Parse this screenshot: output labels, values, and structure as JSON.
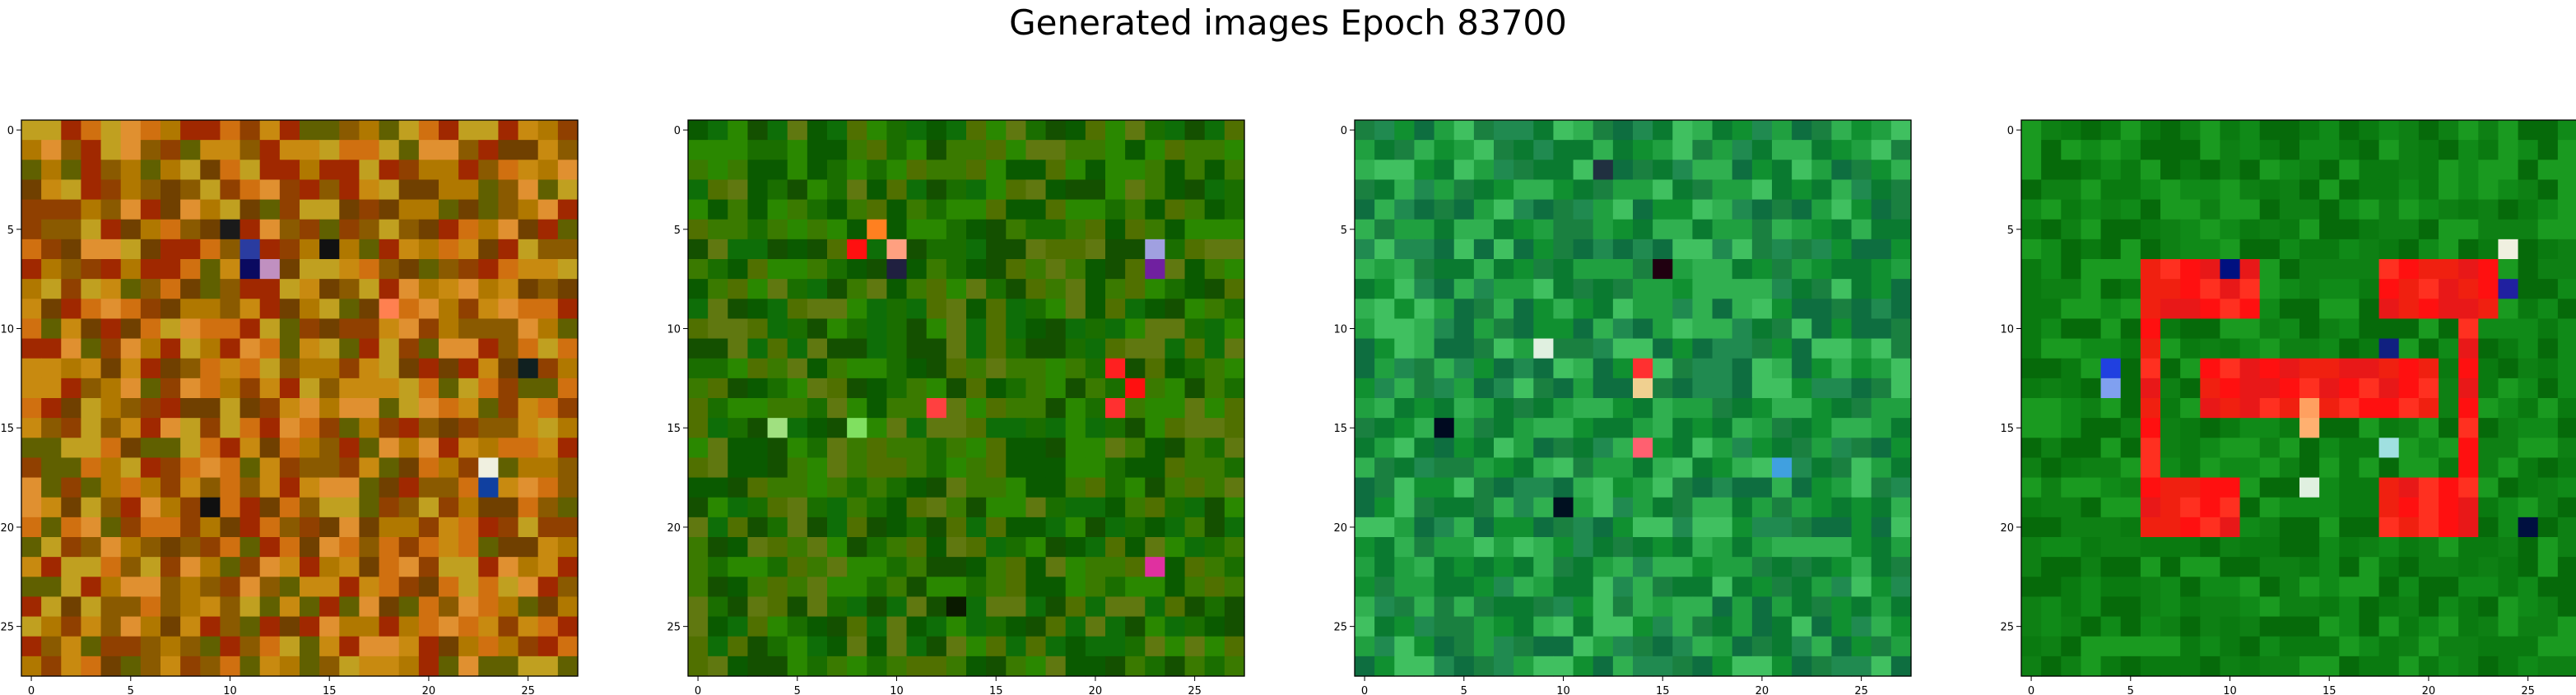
{
  "title": "Generated images Epoch 83700",
  "chart_data": [
    {
      "type": "heatmap",
      "description_source": "image panel 1 (28x28 pixel image)",
      "xticks": [
        0,
        5,
        10,
        15,
        20,
        25
      ],
      "yticks": [
        0,
        5,
        10,
        15,
        20,
        25
      ],
      "xlim": [
        -0.5,
        27.5
      ],
      "ylim": [
        27.5,
        -0.5
      ],
      "palette": [
        "#b07800",
        "#c88a10",
        "#8a5a00",
        "#a02800",
        "#d07010",
        "#606000",
        "#c0a020",
        "#904000",
        "#e09030",
        "#704000"
      ],
      "accents": [
        {
          "row": 5,
          "col": 10,
          "color": "#1a1a1a"
        },
        {
          "row": 6,
          "col": 11,
          "color": "#2a3ca0"
        },
        {
          "row": 7,
          "col": 11,
          "color": "#0a0a60"
        },
        {
          "row": 7,
          "col": 12,
          "color": "#c090c0"
        },
        {
          "row": 6,
          "col": 15,
          "color": "#111111"
        },
        {
          "row": 9,
          "col": 18,
          "color": "#ff8050"
        },
        {
          "row": 12,
          "col": 25,
          "color": "#102020"
        },
        {
          "row": 17,
          "col": 23,
          "color": "#f0f0e0"
        },
        {
          "row": 18,
          "col": 23,
          "color": "#1040a0"
        },
        {
          "row": 19,
          "col": 9,
          "color": "#101010"
        }
      ]
    },
    {
      "type": "heatmap",
      "description_source": "image panel 2 (28x28 pixel image)",
      "xticks": [
        0,
        5,
        10,
        15,
        20,
        25
      ],
      "yticks": [
        0,
        5,
        10,
        15,
        20,
        25
      ],
      "xlim": [
        -0.5,
        27.5
      ],
      "ylim": [
        27.5,
        -0.5
      ],
      "palette": [
        "#1a6e00",
        "#0a5a00",
        "#3a7a00",
        "#2a8800",
        "#507000",
        "#145000",
        "#0e6e08",
        "#607810"
      ],
      "accents": [
        {
          "row": 6,
          "col": 8,
          "color": "#ff1010"
        },
        {
          "row": 5,
          "col": 9,
          "color": "#ff8020"
        },
        {
          "row": 6,
          "col": 10,
          "color": "#ffa080"
        },
        {
          "row": 7,
          "col": 10,
          "color": "#202040"
        },
        {
          "row": 7,
          "col": 23,
          "color": "#7020a0"
        },
        {
          "row": 6,
          "col": 23,
          "color": "#a0a0e0"
        },
        {
          "row": 12,
          "col": 21,
          "color": "#ff2020"
        },
        {
          "row": 13,
          "col": 22,
          "color": "#ff1010"
        },
        {
          "row": 14,
          "col": 21,
          "color": "#ff3030"
        },
        {
          "row": 14,
          "col": 12,
          "color": "#ff4040"
        },
        {
          "row": 15,
          "col": 4,
          "color": "#a0e080"
        },
        {
          "row": 15,
          "col": 8,
          "color": "#80e060"
        },
        {
          "row": 22,
          "col": 23,
          "color": "#e030a0"
        },
        {
          "row": 24,
          "col": 13,
          "color": "#0a1a00"
        }
      ]
    },
    {
      "type": "heatmap",
      "description_source": "image panel 3 (28x28 pixel image)",
      "xticks": [
        0,
        5,
        10,
        15,
        20,
        25
      ],
      "yticks": [
        0,
        5,
        10,
        15,
        20,
        25
      ],
      "xlim": [
        -0.5,
        27.5
      ],
      "ylim": [
        27.5,
        -0.5
      ],
      "palette": [
        "#109030",
        "#20a040",
        "#0a7a30",
        "#30b050",
        "#1a8040",
        "#40c060",
        "#0e6e40",
        "#208a50"
      ],
      "accents": [
        {
          "row": 2,
          "col": 12,
          "color": "#203040"
        },
        {
          "row": 7,
          "col": 15,
          "color": "#200010"
        },
        {
          "row": 11,
          "col": 9,
          "color": "#e0f0e0"
        },
        {
          "row": 12,
          "col": 14,
          "color": "#ff3030"
        },
        {
          "row": 13,
          "col": 14,
          "color": "#f0d090"
        },
        {
          "row": 15,
          "col": 4,
          "color": "#000a20"
        },
        {
          "row": 16,
          "col": 14,
          "color": "#ff6070"
        },
        {
          "row": 17,
          "col": 21,
          "color": "#40a0e0"
        },
        {
          "row": 19,
          "col": 10,
          "color": "#001020"
        }
      ]
    },
    {
      "type": "heatmap",
      "description_source": "image panel 4 (28x28 pixel image)",
      "xticks": [
        0,
        5,
        10,
        15,
        20,
        25
      ],
      "yticks": [
        0,
        5,
        10,
        15,
        20,
        25
      ],
      "xlim": [
        -0.5,
        27.5
      ],
      "ylim": [
        27.5,
        -0.5
      ],
      "palette": [
        "#0a7a10",
        "#108a18",
        "#066a0a",
        "#1a9a20",
        "#0e8014"
      ],
      "accents": [
        {
          "row": 6,
          "col": 24,
          "color": "#f0f0e0"
        },
        {
          "row": 7,
          "col": 10,
          "color": "#001080"
        },
        {
          "row": 8,
          "col": 24,
          "color": "#2020a0"
        },
        {
          "row": 11,
          "col": 18,
          "color": "#102080"
        },
        {
          "row": 12,
          "col": 4,
          "color": "#2040e0"
        },
        {
          "row": 13,
          "col": 4,
          "color": "#80a0f0"
        },
        {
          "row": 14,
          "col": 14,
          "color": "#ffa060"
        },
        {
          "row": 15,
          "col": 14,
          "color": "#ffb070"
        },
        {
          "row": 16,
          "col": 18,
          "color": "#a0e0e0"
        },
        {
          "row": 18,
          "col": 14,
          "color": "#e0f0e0"
        },
        {
          "row": 20,
          "col": 25,
          "color": "#001040"
        }
      ],
      "red_blocks": [
        {
          "r0": 7,
          "r1": 9,
          "c0": 6,
          "c1": 11
        },
        {
          "r0": 7,
          "r1": 9,
          "c0": 18,
          "c1": 23
        },
        {
          "r0": 12,
          "r1": 14,
          "c0": 9,
          "c1": 20
        },
        {
          "r0": 10,
          "r1": 20,
          "c0": 6,
          "c1": 6
        },
        {
          "r0": 10,
          "r1": 20,
          "c0": 22,
          "c1": 22
        },
        {
          "r0": 18,
          "r1": 20,
          "c0": 6,
          "c1": 10
        },
        {
          "r0": 18,
          "r1": 20,
          "c0": 18,
          "c1": 22
        }
      ]
    }
  ]
}
